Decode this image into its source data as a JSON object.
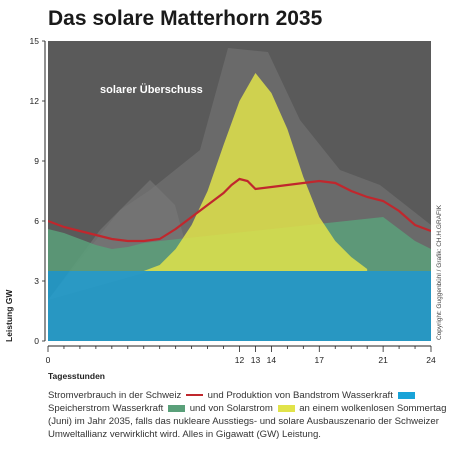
{
  "title": "Das solare Matterhorn 2035",
  "annotation": "solarer Überschuss",
  "credit": "Copyright: Guggenbühl / Grafik: CH.H.GRAFIK",
  "colors": {
    "consumption_line": "#c0272d",
    "band_hydro": "#18a3d8",
    "storage_hydro": "#5aa07a",
    "solar": "#e1e34a",
    "background": "#5a5a5a"
  },
  "legend": {
    "consumption_text": "Stromverbrauch in der Schweiz",
    "band_text": "und Produktion von Bandstrom Wasserkraft",
    "storage_text": "Speicherstrom Wasserkraft",
    "solar_text": "und von Solarstrom",
    "tail_text": "an einem wolkenlosen Sommertag (Juni) im Jahr 2035, falls das nukleare Ausstiegs- und solare Ausbauszenario der Schweizer Umweltallianz verwirklicht wird. Alles in Gigawatt (GW) Leistung."
  },
  "chart_data": {
    "type": "area",
    "xlabel": "Tagesstunden",
    "ylabel": "Leistung GW",
    "xlim": [
      0,
      24
    ],
    "ylim": [
      0,
      15
    ],
    "x_ticks": [
      0,
      12,
      13,
      14,
      17,
      21,
      24
    ],
    "y_ticks": [
      0,
      3,
      6,
      9,
      12,
      15
    ],
    "grid": false,
    "legend_position": "bottom",
    "series": [
      {
        "name": "Stromverbrauch in der Schweiz",
        "kind": "line",
        "x": [
          0,
          1,
          2,
          3,
          4,
          5,
          6,
          7,
          8,
          9,
          10,
          11,
          11.5,
          12,
          12.5,
          13,
          14,
          15,
          16,
          17,
          18,
          19,
          20,
          21,
          22,
          23,
          24
        ],
        "y": [
          6.0,
          5.7,
          5.5,
          5.3,
          5.1,
          5.0,
          5.0,
          5.1,
          5.6,
          6.2,
          6.8,
          7.4,
          7.8,
          8.1,
          8.0,
          7.6,
          7.7,
          7.8,
          7.9,
          8.0,
          7.9,
          7.5,
          7.2,
          7.0,
          6.5,
          5.8,
          5.5
        ]
      },
      {
        "name": "Bandstrom Wasserkraft",
        "kind": "area",
        "x": [
          0,
          24
        ],
        "y": [
          3.5,
          3.5
        ]
      },
      {
        "name": "Speicherstrom Wasserkraft",
        "kind": "area",
        "x": [
          0,
          1,
          2,
          3,
          4,
          5,
          6,
          7,
          21,
          22,
          23,
          24
        ],
        "y": [
          5.6,
          5.4,
          5.1,
          4.8,
          4.6,
          4.7,
          4.9,
          5.0,
          6.2,
          5.6,
          5.0,
          4.6
        ]
      },
      {
        "name": "Solarstrom",
        "kind": "area",
        "x": [
          6,
          7,
          8,
          9,
          10,
          11,
          12,
          13,
          14,
          15,
          16,
          17,
          18,
          19,
          20
        ],
        "y": [
          3.5,
          3.8,
          4.6,
          5.8,
          7.5,
          9.8,
          12.0,
          13.4,
          12.4,
          10.6,
          8.2,
          6.2,
          5.0,
          4.2,
          3.6
        ]
      }
    ]
  }
}
